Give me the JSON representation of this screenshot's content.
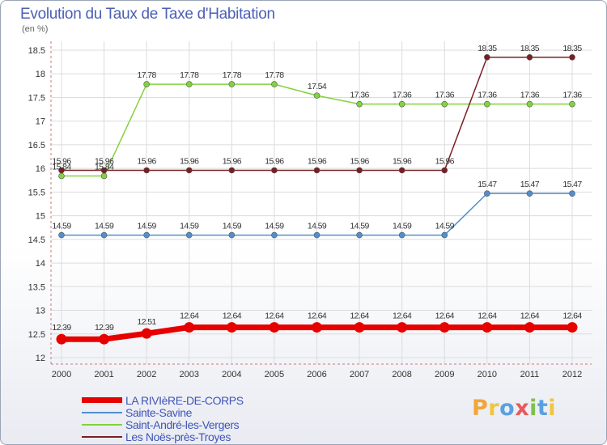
{
  "header": {
    "title": "Evolution du Taux de Taxe d'Habitation",
    "unit": "(en %)"
  },
  "logo": {
    "text": "Proxiti",
    "letter_colors": [
      "#f2a53a",
      "#f0c63b",
      "#5aa0e0",
      "#e85a5a",
      "#7fc24a",
      "#5aa0e0",
      "#f0c63b"
    ]
  },
  "chart_data": {
    "type": "line",
    "title": "Evolution du Taux de Taxe d'Habitation",
    "ylabel": "(en %)",
    "xlabel": "",
    "x": [
      "2000",
      "2001",
      "2002",
      "2003",
      "2004",
      "2005",
      "2006",
      "2007",
      "2008",
      "2009",
      "2010",
      "2011",
      "2012"
    ],
    "ylim": [
      12,
      18.5
    ],
    "yticks": [
      "12",
      "12.5",
      "13",
      "13.5",
      "14",
      "14.5",
      "15",
      "15.5",
      "16",
      "16.5",
      "17",
      "17.5",
      "18",
      "18.5"
    ],
    "grid": true,
    "legend_position": "bottom-left",
    "series": [
      {
        "name": "LA RIVIèRE-DE-CORPS",
        "color": "#e60000",
        "thick": true,
        "values": [
          12.39,
          12.39,
          12.51,
          12.64,
          12.64,
          12.64,
          12.64,
          12.64,
          12.64,
          12.64,
          12.64,
          12.64,
          12.64
        ],
        "labels": [
          "12.39",
          "12.39",
          "12.51",
          "12.64",
          "12.64",
          "12.64",
          "12.64",
          "12.64",
          "12.64",
          "12.64",
          "12.64",
          "12.64",
          "12.64"
        ]
      },
      {
        "name": "Sainte-Savine",
        "color": "#4f8fd0",
        "thick": false,
        "values": [
          14.59,
          14.59,
          14.59,
          14.59,
          14.59,
          14.59,
          14.59,
          14.59,
          14.59,
          14.59,
          15.47,
          15.47,
          15.47
        ],
        "labels": [
          "14.59",
          "14.59",
          "14.59",
          "14.59",
          "14.59",
          "14.59",
          "14.59",
          "14.59",
          "14.59",
          "14.59",
          "15.47",
          "15.47",
          "15.47"
        ]
      },
      {
        "name": "Saint-André-les-Vergers",
        "color": "#84d23e",
        "thick": false,
        "values": [
          15.84,
          15.84,
          17.78,
          17.78,
          17.78,
          17.78,
          17.54,
          17.36,
          17.36,
          17.36,
          17.36,
          17.36,
          17.36
        ],
        "labels": [
          "15.84",
          "15.84",
          "17.78",
          "17.78",
          "17.78",
          "17.78",
          "17.54",
          "17.36",
          "17.36",
          "17.36",
          "17.36",
          "17.36",
          "17.36"
        ]
      },
      {
        "name": "Les Noës-près-Troyes",
        "color": "#7a1e24",
        "thick": false,
        "values": [
          15.96,
          15.96,
          15.96,
          15.96,
          15.96,
          15.96,
          15.96,
          15.96,
          15.96,
          15.96,
          18.35,
          18.35,
          18.35
        ],
        "labels": [
          "15.96",
          "15.96",
          "15.96",
          "15.96",
          "15.96",
          "15.96",
          "15.96",
          "15.96",
          "15.96",
          "15.96",
          "18.35",
          "18.35",
          "18.35"
        ]
      }
    ]
  }
}
